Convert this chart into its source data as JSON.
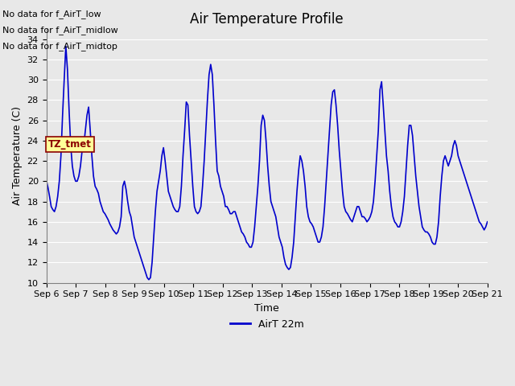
{
  "title": "Air Temperature Profile",
  "xlabel": "Time",
  "ylabel": "Air Temperature (C)",
  "ylim": [
    10,
    35
  ],
  "yticks": [
    10,
    12,
    14,
    16,
    18,
    20,
    22,
    24,
    26,
    28,
    30,
    32,
    34
  ],
  "line_color": "#0000CC",
  "line_width": 1.2,
  "bg_color": "#E8E8E8",
  "no_data_texts": [
    "No data for f_AirT_low",
    "No data for f_AirT_midlow",
    "No data for f_AirT_midtop"
  ],
  "tz_label": "TZ_tmet",
  "legend_label": "AirT 22m",
  "x_tick_labels": [
    "Sep 6",
    "Sep 7",
    "Sep 8",
    "Sep 9",
    "Sep 10",
    "Sep 11",
    "Sep 12",
    "Sep 13",
    "Sep 14",
    "Sep 15",
    "Sep 16",
    "Sep 17",
    "Sep 18",
    "Sep 19",
    "Sep 20",
    "Sep 21"
  ],
  "temp_keypoints": [
    20.1,
    19.4,
    18.5,
    17.5,
    17.2,
    17.0,
    17.5,
    18.5,
    20.0,
    22.5,
    26.5,
    30.0,
    33.3,
    31.0,
    27.0,
    23.5,
    21.5,
    20.5,
    20.0,
    20.0,
    20.5,
    21.5,
    23.0,
    23.5,
    25.0,
    26.5,
    27.3,
    25.0,
    22.5,
    20.5,
    19.5,
    19.2,
    18.8,
    18.0,
    17.5,
    17.0,
    16.8,
    16.5,
    16.2,
    15.8,
    15.5,
    15.2,
    15.0,
    14.8,
    15.0,
    15.5,
    16.5,
    19.5,
    20.0,
    19.2,
    18.0,
    17.0,
    16.5,
    15.5,
    14.5,
    14.0,
    13.5,
    13.0,
    12.5,
    12.0,
    11.5,
    11.0,
    10.5,
    10.3,
    10.5,
    12.0,
    14.5,
    17.0,
    19.0,
    20.0,
    21.0,
    22.5,
    23.3,
    22.0,
    20.5,
    19.0,
    18.5,
    18.0,
    17.5,
    17.2,
    17.0,
    17.0,
    17.5,
    19.5,
    22.5,
    25.0,
    27.8,
    27.5,
    24.5,
    22.0,
    19.5,
    17.5,
    17.0,
    16.8,
    17.0,
    17.5,
    19.5,
    22.0,
    25.0,
    28.0,
    30.5,
    31.5,
    30.5,
    27.5,
    24.0,
    21.0,
    20.5,
    19.5,
    19.0,
    18.5,
    17.5,
    17.5,
    17.2,
    16.8,
    16.8,
    17.0,
    17.0,
    16.5,
    16.0,
    15.5,
    15.0,
    14.8,
    14.5,
    14.0,
    13.8,
    13.5,
    13.5,
    14.0,
    15.5,
    17.5,
    19.5,
    22.0,
    25.5,
    26.5,
    26.0,
    24.0,
    21.5,
    19.5,
    18.0,
    17.5,
    17.0,
    16.5,
    15.5,
    14.5,
    14.0,
    13.5,
    12.5,
    11.8,
    11.5,
    11.3,
    11.5,
    12.5,
    14.0,
    16.5,
    19.0,
    21.0,
    22.5,
    22.0,
    21.0,
    19.5,
    17.5,
    16.5,
    16.0,
    15.8,
    15.5,
    15.0,
    14.5,
    14.0,
    14.0,
    14.5,
    15.5,
    17.5,
    20.0,
    22.5,
    25.0,
    27.5,
    28.8,
    29.0,
    27.5,
    25.5,
    23.0,
    21.0,
    19.0,
    17.5,
    17.0,
    16.8,
    16.5,
    16.2,
    16.0,
    16.5,
    17.0,
    17.5,
    17.5,
    17.0,
    16.5,
    16.5,
    16.3,
    16.0,
    16.2,
    16.5,
    17.0,
    18.0,
    20.0,
    22.5,
    25.0,
    29.0,
    29.8,
    27.5,
    25.0,
    22.5,
    21.0,
    19.0,
    17.5,
    16.5,
    16.0,
    15.8,
    15.5,
    15.5,
    16.0,
    17.0,
    18.5,
    21.0,
    23.5,
    25.5,
    25.5,
    24.5,
    22.5,
    20.5,
    19.0,
    17.5,
    16.5,
    15.5,
    15.2,
    15.0,
    15.0,
    14.8,
    14.5,
    14.0,
    13.8,
    13.8,
    14.5,
    16.0,
    18.5,
    20.5,
    22.0,
    22.5,
    22.0,
    21.5,
    22.0,
    22.5,
    23.5,
    24.0,
    23.5,
    22.5,
    22.0,
    21.5,
    21.0,
    20.5,
    20.0,
    19.5,
    19.0,
    18.5,
    18.0,
    17.5,
    17.0,
    16.5,
    16.0,
    15.8,
    15.5,
    15.2,
    15.5,
    16.0
  ]
}
